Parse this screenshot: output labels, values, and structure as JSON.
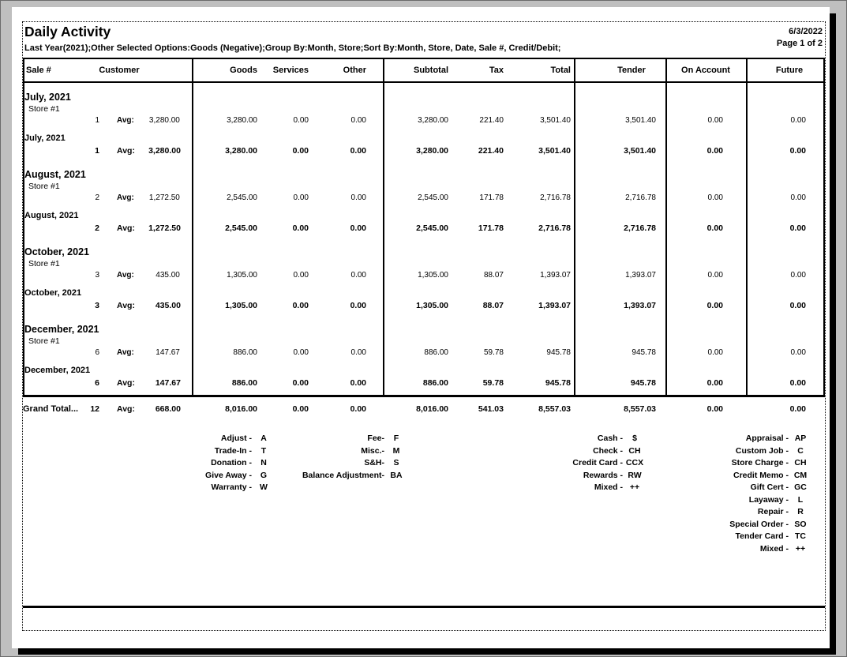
{
  "page": {
    "title": "Daily Activity",
    "date": "6/3/2022",
    "page_indicator": "Page 1 of 2",
    "subtitle": "Last Year(2021);Other Selected Options:Goods (Negative);Group By:Month, Store;Sort By:Month, Store, Date, Sale #, Credit/Debit;"
  },
  "table": {
    "avg_label": "Avg:",
    "headers": {
      "sale": "Sale #",
      "customer": "Customer",
      "goods": "Goods",
      "services": "Services",
      "other": "Other",
      "subtotal": "Subtotal",
      "tax": "Tax",
      "total": "Total",
      "tender": "Tender",
      "on_account": "On Account",
      "future": "Future"
    },
    "groups": [
      {
        "month": "July, 2021",
        "store": "Store #1",
        "detail": {
          "count": "1",
          "avg": "3,280.00",
          "goods": "3,280.00",
          "services": "0.00",
          "other": "0.00",
          "subtotal": "3,280.00",
          "tax": "221.40",
          "total": "3,501.40",
          "tender": "3,501.40",
          "on_account": "0.00",
          "future": "0.00"
        },
        "summary_label": "July, 2021",
        "summary": {
          "count": "1",
          "avg": "3,280.00",
          "goods": "3,280.00",
          "services": "0.00",
          "other": "0.00",
          "subtotal": "3,280.00",
          "tax": "221.40",
          "total": "3,501.40",
          "tender": "3,501.40",
          "on_account": "0.00",
          "future": "0.00"
        }
      },
      {
        "month": "August, 2021",
        "store": "Store #1",
        "detail": {
          "count": "2",
          "avg": "1,272.50",
          "goods": "2,545.00",
          "services": "0.00",
          "other": "0.00",
          "subtotal": "2,545.00",
          "tax": "171.78",
          "total": "2,716.78",
          "tender": "2,716.78",
          "on_account": "0.00",
          "future": "0.00"
        },
        "summary_label": "August, 2021",
        "summary": {
          "count": "2",
          "avg": "1,272.50",
          "goods": "2,545.00",
          "services": "0.00",
          "other": "0.00",
          "subtotal": "2,545.00",
          "tax": "171.78",
          "total": "2,716.78",
          "tender": "2,716.78",
          "on_account": "0.00",
          "future": "0.00"
        }
      },
      {
        "month": "October, 2021",
        "store": "Store #1",
        "detail": {
          "count": "3",
          "avg": "435.00",
          "goods": "1,305.00",
          "services": "0.00",
          "other": "0.00",
          "subtotal": "1,305.00",
          "tax": "88.07",
          "total": "1,393.07",
          "tender": "1,393.07",
          "on_account": "0.00",
          "future": "0.00"
        },
        "summary_label": "October, 2021",
        "summary": {
          "count": "3",
          "avg": "435.00",
          "goods": "1,305.00",
          "services": "0.00",
          "other": "0.00",
          "subtotal": "1,305.00",
          "tax": "88.07",
          "total": "1,393.07",
          "tender": "1,393.07",
          "on_account": "0.00",
          "future": "0.00"
        }
      },
      {
        "month": "December, 2021",
        "store": "Store #1",
        "detail": {
          "count": "6",
          "avg": "147.67",
          "goods": "886.00",
          "services": "0.00",
          "other": "0.00",
          "subtotal": "886.00",
          "tax": "59.78",
          "total": "945.78",
          "tender": "945.78",
          "on_account": "0.00",
          "future": "0.00"
        },
        "summary_label": "December, 2021",
        "summary": {
          "count": "6",
          "avg": "147.67",
          "goods": "886.00",
          "services": "0.00",
          "other": "0.00",
          "subtotal": "886.00",
          "tax": "59.78",
          "total": "945.78",
          "tender": "945.78",
          "on_account": "0.00",
          "future": "0.00"
        }
      }
    ],
    "grand_total": {
      "label": "Grand Total...",
      "count": "12",
      "avg": "668.00",
      "goods": "8,016.00",
      "services": "0.00",
      "other": "0.00",
      "subtotal": "8,016.00",
      "tax": "541.03",
      "total": "8,557.03",
      "tender": "8,557.03",
      "on_account": "0.00",
      "future": "0.00"
    }
  },
  "legend": {
    "goods_codes": [
      {
        "label": "Adjust -",
        "code": "A"
      },
      {
        "label": "Trade-In -",
        "code": "T"
      },
      {
        "label": "Donation -",
        "code": "N"
      },
      {
        "label": "Give Away -",
        "code": "G"
      },
      {
        "label": "Warranty -",
        "code": "W"
      }
    ],
    "charge_codes": [
      {
        "label": "Fee-",
        "code": "F"
      },
      {
        "label": "Misc.-",
        "code": "M"
      },
      {
        "label": "S&H-",
        "code": "S"
      },
      {
        "label": "Balance Adjustment-",
        "code": "BA"
      }
    ],
    "tender_codes": [
      {
        "label": "Cash -",
        "code": "$"
      },
      {
        "label": "Check -",
        "code": "CH"
      },
      {
        "label": "Credit Card -",
        "code": "CCX"
      },
      {
        "label": "Rewards -",
        "code": "RW"
      },
      {
        "label": "Mixed -",
        "code": "++"
      }
    ],
    "sale_type_codes": [
      {
        "label": "Appraisal -",
        "code": "AP"
      },
      {
        "label": "Custom Job -",
        "code": "C"
      },
      {
        "label": "Store Charge -",
        "code": "CH"
      },
      {
        "label": "Credit Memo -",
        "code": "CM"
      },
      {
        "label": "Gift Cert -",
        "code": "GC"
      },
      {
        "label": "Layaway -",
        "code": "L"
      },
      {
        "label": "Repair -",
        "code": "R"
      },
      {
        "label": "Special Order -",
        "code": "SO"
      },
      {
        "label": "Tender Card -",
        "code": "TC"
      },
      {
        "label": "Mixed -",
        "code": "++"
      }
    ]
  }
}
